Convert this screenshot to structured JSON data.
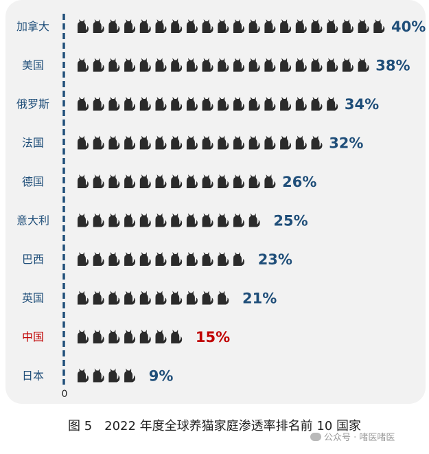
{
  "chart_data": {
    "type": "pictogram-bar",
    "unit_per_icon": 2,
    "categories": [
      "加拿大",
      "美国",
      "俄罗斯",
      "法国",
      "德国",
      "意大利",
      "巴西",
      "英国",
      "中国",
      "日本"
    ],
    "values": [
      40,
      38,
      34,
      32,
      26,
      25,
      23,
      21,
      15,
      9
    ],
    "value_labels": [
      "40%",
      "38%",
      "34%",
      "32%",
      "26%",
      "25%",
      "23%",
      "21%",
      "15%",
      "9%"
    ],
    "highlight_category": "中国",
    "origin_label": "0",
    "colors": {
      "label_default": "#1f4e79",
      "label_highlight": "#c00000",
      "icon": "#2b2b2b",
      "axis": "#1f4e79"
    },
    "icon": "cat-icon"
  },
  "caption": "图 5　2022 年度全球养猫家庭渗透率排名前 10 国家",
  "watermark": "公众号 · 啫医啫医"
}
